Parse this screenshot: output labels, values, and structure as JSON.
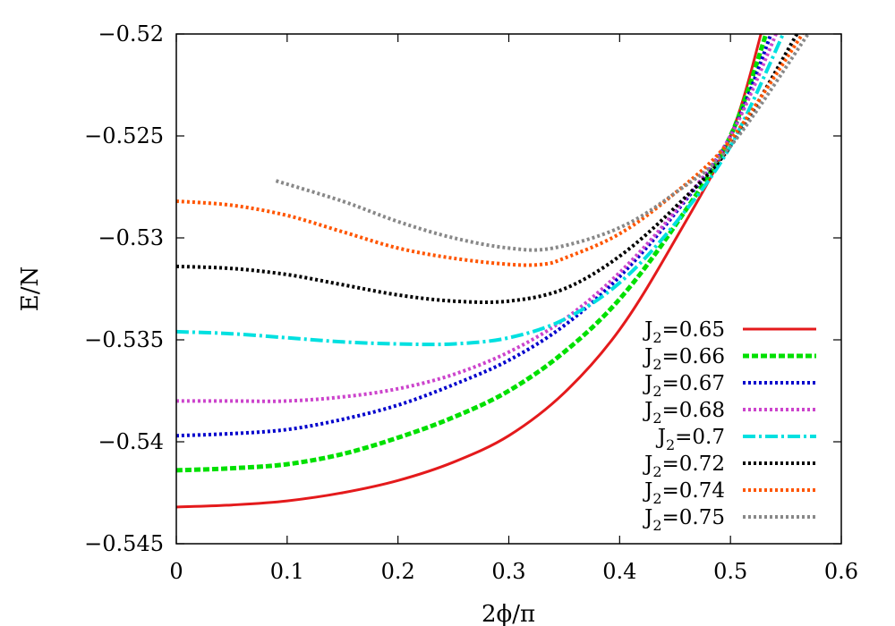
{
  "chart_data": {
    "type": "line",
    "title": "",
    "xlabel": "2ϕ/π",
    "ylabel": "E/N",
    "xlim": [
      0,
      0.6
    ],
    "ylim": [
      -0.545,
      -0.52
    ],
    "xticks": [
      0,
      0.1,
      0.2,
      0.3,
      0.4,
      0.5,
      0.6
    ],
    "xtick_labels": [
      "0",
      "0.1",
      "0.2",
      "0.3",
      "0.4",
      "0.5",
      "0.6"
    ],
    "yticks": [
      -0.545,
      -0.54,
      -0.535,
      -0.53,
      -0.525,
      -0.52
    ],
    "ytick_labels": [
      "−0.545",
      "−0.54",
      "−0.535",
      "−0.53",
      "−0.525",
      "−0.52"
    ],
    "grid": false,
    "legend_position": "bottom-right",
    "series": [
      {
        "name": "J2=0.65",
        "label_main": "J",
        "label_sub": "2",
        "label_rest": "=0.65",
        "color": "#e41a1c",
        "style": "solid",
        "x": [
          0,
          0.05,
          0.1,
          0.15,
          0.2,
          0.25,
          0.3,
          0.35,
          0.4,
          0.45,
          0.5,
          0.53
        ],
        "y": [
          -0.5432,
          -0.5431,
          -0.5429,
          -0.5425,
          -0.5419,
          -0.541,
          -0.5397,
          -0.5376,
          -0.5345,
          -0.5301,
          -0.525,
          -0.5195
        ]
      },
      {
        "name": "J2=0.66",
        "label_main": "J",
        "label_sub": "2",
        "label_rest": "=0.66",
        "color": "#00e000",
        "style": "dashed",
        "x": [
          0,
          0.05,
          0.1,
          0.15,
          0.2,
          0.25,
          0.3,
          0.35,
          0.4,
          0.45,
          0.5,
          0.535
        ],
        "y": [
          -0.5414,
          -0.5413,
          -0.5411,
          -0.5406,
          -0.5398,
          -0.5388,
          -0.5375,
          -0.5356,
          -0.533,
          -0.5294,
          -0.525,
          -0.5195
        ]
      },
      {
        "name": "J2=0.67",
        "label_main": "J",
        "label_sub": "2",
        "label_rest": "=0.67",
        "color": "#0000cc",
        "style": "dotted",
        "x": [
          0,
          0.05,
          0.1,
          0.15,
          0.2,
          0.25,
          0.3,
          0.35,
          0.4,
          0.45,
          0.5,
          0.54
        ],
        "y": [
          -0.5397,
          -0.5396,
          -0.5394,
          -0.5389,
          -0.5382,
          -0.5372,
          -0.536,
          -0.5343,
          -0.5319,
          -0.5288,
          -0.525,
          -0.5195
        ]
      },
      {
        "name": "J2=0.68",
        "label_main": "J",
        "label_sub": "2",
        "label_rest": "=0.68",
        "color": "#cc44cc",
        "style": "dotted",
        "x": [
          0,
          0.05,
          0.1,
          0.15,
          0.2,
          0.25,
          0.3,
          0.35,
          0.4,
          0.45,
          0.5,
          0.545
        ],
        "y": [
          -0.538,
          -0.538,
          -0.538,
          -0.5378,
          -0.5374,
          -0.5367,
          -0.5356,
          -0.534,
          -0.5317,
          -0.5287,
          -0.525,
          -0.5195
        ]
      },
      {
        "name": "J2=0.7",
        "label_main": "J",
        "label_sub": "2",
        "label_rest": "=0.7",
        "color": "#00e0e0",
        "style": "dashdot",
        "x": [
          0,
          0.05,
          0.1,
          0.15,
          0.2,
          0.25,
          0.3,
          0.35,
          0.4,
          0.45,
          0.5,
          0.55
        ],
        "y": [
          -0.5346,
          -0.5347,
          -0.5349,
          -0.5351,
          -0.5352,
          -0.5352,
          -0.5349,
          -0.534,
          -0.5322,
          -0.5293,
          -0.5255,
          -0.5197
        ]
      },
      {
        "name": "J2=0.72",
        "label_main": "J",
        "label_sub": "2",
        "label_rest": "=0.72",
        "color": "#000000",
        "style": "dotted",
        "x": [
          0,
          0.05,
          0.1,
          0.15,
          0.2,
          0.25,
          0.3,
          0.35,
          0.4,
          0.45,
          0.5,
          0.56
        ],
        "y": [
          -0.5314,
          -0.5315,
          -0.5318,
          -0.5323,
          -0.5328,
          -0.5331,
          -0.5331,
          -0.5325,
          -0.5309,
          -0.5285,
          -0.5255,
          -0.52
        ]
      },
      {
        "name": "J2=0.74",
        "label_main": "J",
        "label_sub": "2",
        "label_rest": "=0.74",
        "color": "#ff5500",
        "style": "dotted",
        "x": [
          0,
          0.05,
          0.1,
          0.15,
          0.2,
          0.25,
          0.3,
          0.33,
          0.35,
          0.4,
          0.45,
          0.5,
          0.565
        ],
        "y": [
          -0.5282,
          -0.5284,
          -0.5289,
          -0.5297,
          -0.5305,
          -0.531,
          -0.5313,
          -0.5313,
          -0.531,
          -0.5298,
          -0.5278,
          -0.5252,
          -0.52
        ]
      },
      {
        "name": "J2=0.75",
        "label_main": "J",
        "label_sub": "2",
        "label_rest": "=0.75",
        "color": "#888888",
        "style": "dotted",
        "x": [
          0.09,
          0.15,
          0.2,
          0.25,
          0.3,
          0.34,
          0.4,
          0.45,
          0.5,
          0.57
        ],
        "y": [
          -0.5272,
          -0.5282,
          -0.5292,
          -0.53,
          -0.5305,
          -0.5305,
          -0.5295,
          -0.5278,
          -0.5255,
          -0.52
        ]
      }
    ]
  }
}
